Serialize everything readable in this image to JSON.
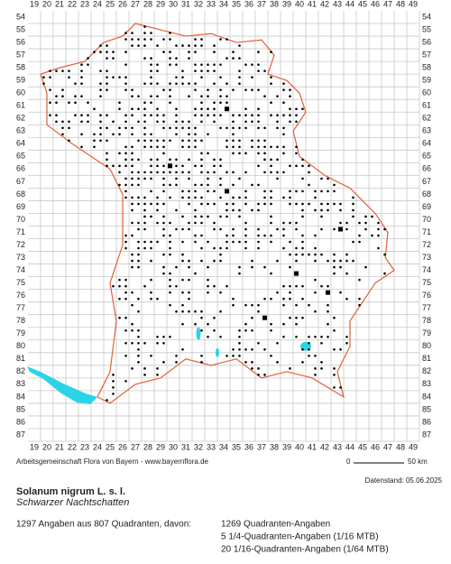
{
  "map": {
    "columns": [
      19,
      20,
      21,
      22,
      23,
      24,
      25,
      26,
      27,
      28,
      29,
      30,
      31,
      32,
      33,
      34,
      35,
      36,
      37,
      38,
      39,
      40,
      41,
      42,
      43,
      44,
      45,
      46,
      47,
      48,
      49
    ],
    "rows": [
      54,
      55,
      56,
      57,
      58,
      59,
      60,
      61,
      62,
      63,
      64,
      65,
      66,
      67,
      68,
      69,
      70,
      71,
      72,
      73,
      74,
      75,
      76,
      77,
      78,
      79,
      80,
      81,
      82,
      83,
      84,
      85,
      86,
      87
    ],
    "credit": "Arbeitsgemeinschaft Flora von Bayern - www.bayernflora.de",
    "scale_start": "0",
    "scale_end": "50 km",
    "date": "Datenstand: 05.06.2025"
  },
  "species": {
    "name": "Solanum nigrum L. s. l.",
    "common_name": "Schwarzer Nachtschatten"
  },
  "summary": {
    "total": "1297 Angaben aus 807 Quadranten, davon:",
    "lines": [
      "1269 Quadranten-Angaben",
      "5 1/4-Quadranten-Angaben (1/16 MTB)",
      "20 1/16-Quadranten-Angaben (1/64 MTB)"
    ]
  }
}
